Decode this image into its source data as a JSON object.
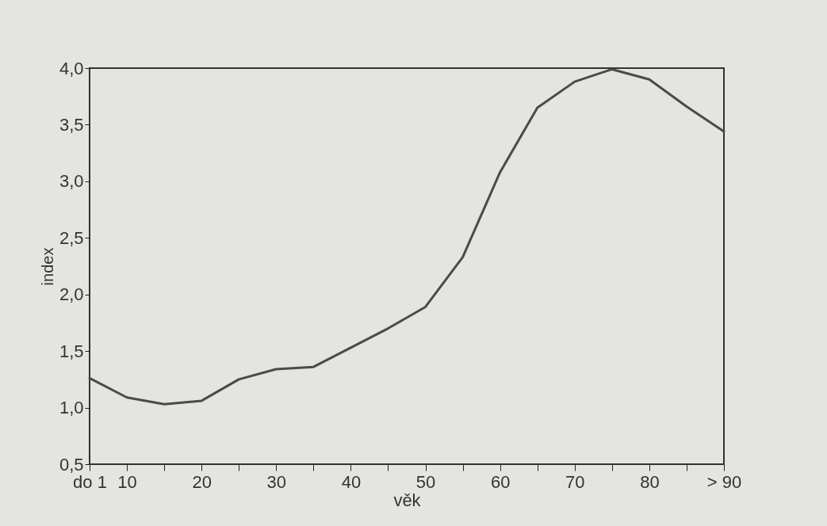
{
  "chart_data": {
    "type": "line",
    "xlabel": "věk",
    "ylabel": "index",
    "categories": [
      "do 1",
      "10",
      null,
      "20",
      null,
      "30",
      null,
      "40",
      null,
      "50",
      null,
      "60",
      null,
      "70",
      null,
      "80",
      null,
      "> 90"
    ],
    "series": [
      {
        "color": "#4a4a4a",
        "values": [
          1.26,
          1.09,
          1.03,
          1.06,
          1.25,
          1.34,
          1.36,
          1.53,
          1.7,
          1.89,
          2.33,
          3.08,
          3.65,
          3.88,
          3.99,
          3.9,
          3.66,
          3.44
        ]
      }
    ],
    "ylim": [
      0.5,
      4.0
    ],
    "yticks": [
      {
        "value": 0.5,
        "label": "0,5"
      },
      {
        "value": 1.0,
        "label": "1,0"
      },
      {
        "value": 1.5,
        "label": "1,5"
      },
      {
        "value": 2.0,
        "label": "2,0"
      },
      {
        "value": 2.5,
        "label": "2,5"
      },
      {
        "value": 3.0,
        "label": "3,0"
      },
      {
        "value": 3.5,
        "label": "3,5"
      },
      {
        "value": 4.0,
        "label": "4,0"
      }
    ],
    "grid": false,
    "marker": "none",
    "line_style": "solid"
  }
}
